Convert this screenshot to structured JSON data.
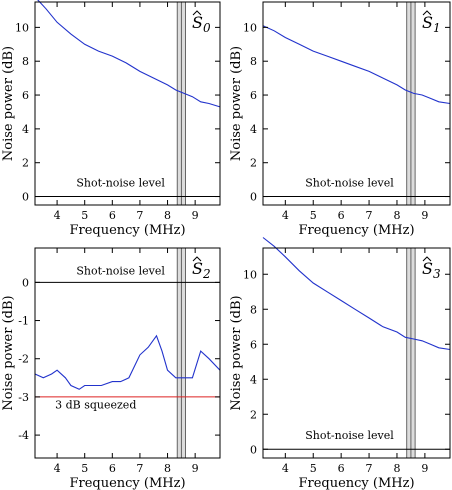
{
  "chart_data": [
    {
      "type": "line",
      "label": "Ŝ₀",
      "label_base": "S",
      "label_sub": "0",
      "xlabel": "Frequency (MHz)",
      "ylabel": "Noise power (dB)",
      "xlim": [
        3.2,
        9.9
      ],
      "ylim": [
        -0.5,
        11.5
      ],
      "xticks": [
        4,
        5,
        6,
        7,
        8,
        9
      ],
      "yticks": [
        0,
        2,
        4,
        6,
        8,
        10
      ],
      "reference_lines": [
        {
          "y": 0,
          "label": "Shot-noise level",
          "color": "#000000",
          "label_x": 6.3,
          "label_y": 0.6
        }
      ],
      "shaded_band": [
        8.35,
        8.65
      ],
      "band_divider": 8.5,
      "series": [
        {
          "x": [
            3.2,
            3.6,
            4.0,
            4.5,
            5.0,
            5.5,
            6.0,
            6.5,
            7.0,
            7.5,
            8.0,
            8.3,
            8.6,
            8.9,
            9.2,
            9.5,
            9.9
          ],
          "y": [
            11.8,
            11.1,
            10.3,
            9.6,
            9.0,
            8.6,
            8.3,
            7.9,
            7.4,
            7.0,
            6.6,
            6.3,
            6.1,
            5.9,
            5.6,
            5.5,
            5.3
          ],
          "color": "#2233cc"
        }
      ]
    },
    {
      "type": "line",
      "label": "Ŝ₁",
      "label_base": "S",
      "label_sub": "1",
      "xlabel": "Frequency (MHz)",
      "ylabel": "Noise power (dB)",
      "xlim": [
        3.2,
        9.9
      ],
      "ylim": [
        -0.5,
        11.5
      ],
      "xticks": [
        4,
        5,
        6,
        7,
        8,
        9
      ],
      "yticks": [
        0,
        2,
        4,
        6,
        8,
        10
      ],
      "reference_lines": [
        {
          "y": 0,
          "label": "Shot-noise level",
          "color": "#000000",
          "label_x": 6.3,
          "label_y": 0.6
        }
      ],
      "shaded_band": [
        8.35,
        8.65
      ],
      "band_divider": 8.5,
      "series": [
        {
          "x": [
            3.2,
            3.6,
            4.0,
            4.5,
            5.0,
            5.5,
            6.0,
            6.5,
            7.0,
            7.5,
            8.0,
            8.3,
            8.6,
            8.9,
            9.2,
            9.5,
            9.9
          ],
          "y": [
            10.1,
            9.8,
            9.4,
            9.0,
            8.6,
            8.3,
            8.0,
            7.7,
            7.4,
            7.0,
            6.6,
            6.3,
            6.1,
            6.0,
            5.8,
            5.6,
            5.5
          ],
          "color": "#2233cc"
        }
      ]
    },
    {
      "type": "line",
      "label": "Ŝ₂",
      "label_base": "S",
      "label_sub": "2",
      "xlabel": "Frequency (MHz)",
      "ylabel": "Noise power (dB)",
      "xlim": [
        3.2,
        9.9
      ],
      "ylim": [
        -4.6,
        0.9
      ],
      "xticks": [
        4,
        5,
        6,
        7,
        8,
        9
      ],
      "yticks": [
        -4,
        -3,
        -2,
        -1,
        0
      ],
      "reference_lines": [
        {
          "y": 0,
          "label": "Shot-noise level",
          "color": "#000000",
          "label_x": 6.3,
          "label_y": 0.2
        },
        {
          "y": -3,
          "label": "3 dB squeezed",
          "color": "#dd2222",
          "label_x": 5.4,
          "label_y": -3.3
        }
      ],
      "shaded_band": [
        8.35,
        8.65
      ],
      "band_divider": 8.5,
      "series": [
        {
          "x": [
            3.2,
            3.5,
            3.8,
            4.0,
            4.3,
            4.5,
            4.8,
            5.0,
            5.3,
            5.6,
            6.0,
            6.3,
            6.6,
            6.8,
            7.0,
            7.3,
            7.6,
            7.8,
            8.0,
            8.3,
            8.6,
            8.9,
            9.2,
            9.5,
            9.9
          ],
          "y": [
            -2.4,
            -2.5,
            -2.4,
            -2.3,
            -2.5,
            -2.7,
            -2.8,
            -2.7,
            -2.7,
            -2.7,
            -2.6,
            -2.6,
            -2.5,
            -2.2,
            -1.9,
            -1.7,
            -1.4,
            -1.8,
            -2.3,
            -2.5,
            -2.5,
            -2.5,
            -1.8,
            -2.0,
            -2.3
          ],
          "color": "#2233cc"
        }
      ]
    },
    {
      "type": "line",
      "label": "Ŝ₃",
      "label_base": "S",
      "label_sub": "3",
      "xlabel": "Frequency (MHz)",
      "ylabel": "Noise power (dB)",
      "xlim": [
        3.2,
        9.9
      ],
      "ylim": [
        -0.5,
        11.5
      ],
      "xticks": [
        4,
        5,
        6,
        7,
        8,
        9
      ],
      "yticks": [
        0,
        2,
        4,
        6,
        8,
        10
      ],
      "reference_lines": [
        {
          "y": 0,
          "label": "Shot-noise level",
          "color": "#000000",
          "label_x": 6.3,
          "label_y": 0.6
        }
      ],
      "shaded_band": [
        8.35,
        8.65
      ],
      "band_divider": 8.5,
      "series": [
        {
          "x": [
            3.2,
            3.6,
            4.0,
            4.5,
            5.0,
            5.5,
            6.0,
            6.5,
            7.0,
            7.5,
            8.0,
            8.3,
            8.6,
            8.9,
            9.2,
            9.5,
            9.9
          ],
          "y": [
            12.1,
            11.6,
            11.0,
            10.2,
            9.5,
            9.0,
            8.5,
            8.0,
            7.5,
            7.0,
            6.7,
            6.4,
            6.3,
            6.2,
            6.0,
            5.8,
            5.7
          ],
          "color": "#2233cc"
        }
      ]
    }
  ]
}
